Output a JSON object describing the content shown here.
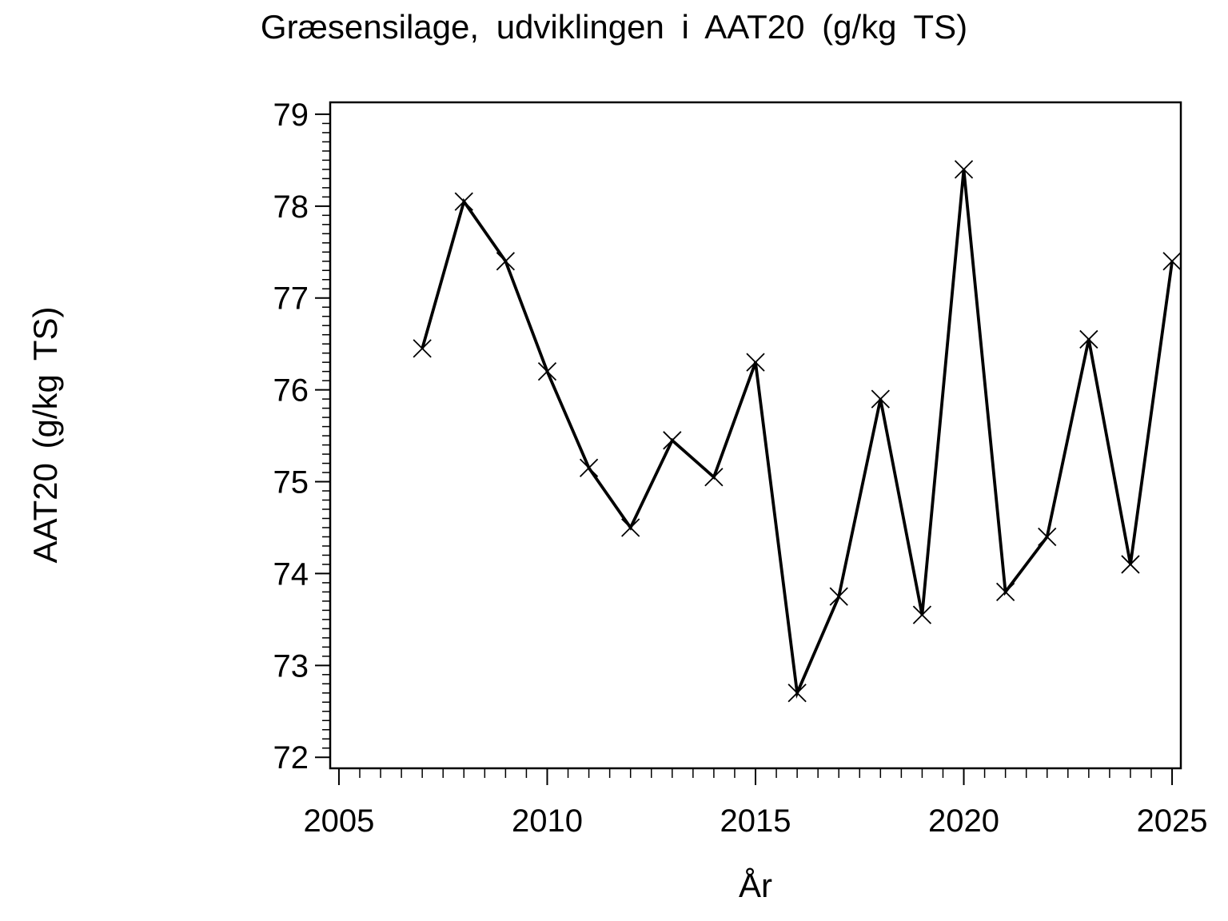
{
  "page": {
    "background_color": "#FFFFFF",
    "foreground_color": "#000000"
  },
  "chart_data": {
    "type": "line",
    "title": "Græsensilage, udviklingen i AAT20 (g/kg TS)",
    "xlabel": "År",
    "ylabel": "AAT20 (g/kg TS)",
    "grid": false,
    "legend_position": "none",
    "line_color": "#000000",
    "marker": "x",
    "x": [
      2007,
      2008,
      2009,
      2010,
      2011,
      2012,
      2013,
      2014,
      2015,
      2016,
      2017,
      2018,
      2019,
      2020,
      2021,
      2022,
      2023,
      2024,
      2025
    ],
    "series": [
      {
        "name": "AAT20 (g/kg TS)",
        "values": [
          76.45,
          78.05,
          77.4,
          76.2,
          75.15,
          74.5,
          75.45,
          75.05,
          76.3,
          72.7,
          73.75,
          75.9,
          73.55,
          78.4,
          73.8,
          74.4,
          76.55,
          74.1,
          77.4
        ]
      }
    ],
    "xaxis": {
      "range": [
        2004.79,
        2025.21
      ],
      "major_ticks": [
        2005,
        2010,
        2015,
        2020,
        2025
      ],
      "minor_tick_step": 0.5,
      "minor_tick_span": [
        2005,
        2025
      ]
    },
    "yaxis": {
      "range": [
        71.88,
        79.13
      ],
      "major_ticks": [
        72,
        73,
        74,
        75,
        76,
        77,
        78,
        79
      ],
      "minor_tick_step": 0.1,
      "minor_tick_span": [
        72,
        79
      ]
    }
  }
}
